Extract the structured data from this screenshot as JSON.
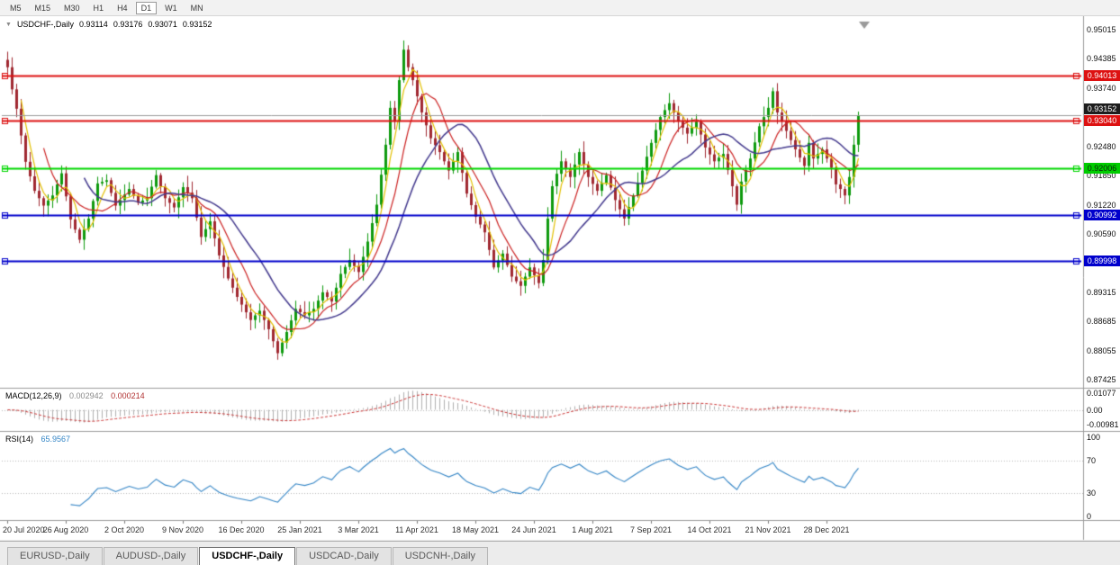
{
  "icons": {
    "dropdown": "▼"
  },
  "toolbar": {
    "timeframes": [
      "M5",
      "M15",
      "M30",
      "H1",
      "H4",
      "D1",
      "W1",
      "MN"
    ],
    "active": "D1"
  },
  "chart": {
    "title_symbol": "USDCHF-,Daily",
    "ohlc": {
      "open": "0.93114",
      "high": "0.93176",
      "low": "0.93071",
      "close": "0.93152"
    }
  },
  "indicators": {
    "macd": {
      "name": "MACD(12,26,9)",
      "value_main": "0.002942",
      "value_signal": "0.000214",
      "axis_labels": [
        {
          "text": "0.01077",
          "value": 0.01077
        },
        {
          "text": "0.00",
          "value": 0
        },
        {
          "text": "-0.00981",
          "value": -0.00981
        }
      ]
    },
    "rsi": {
      "name": "RSI(14)",
      "value": "65.9567",
      "axis_labels": [
        {
          "text": "100",
          "value": 100
        },
        {
          "text": "70",
          "value": 70
        },
        {
          "text": "30",
          "value": 30
        },
        {
          "text": "0",
          "value": 0
        }
      ],
      "levels": [
        70,
        30
      ]
    }
  },
  "price_axis": {
    "labels": [
      {
        "text": "0.95015",
        "price": 0.95015
      },
      {
        "text": "0.94385",
        "price": 0.94385
      },
      {
        "text": "0.93740",
        "price": 0.9374
      },
      {
        "text": "0.92480",
        "price": 0.9248
      },
      {
        "text": "0.91850",
        "price": 0.9185
      },
      {
        "text": "0.91220",
        "price": 0.9122
      },
      {
        "text": "0.90590",
        "price": 0.9059
      },
      {
        "text": "0.89315",
        "price": 0.89315
      },
      {
        "text": "0.88685",
        "price": 0.88685
      },
      {
        "text": "0.88055",
        "price": 0.88055
      },
      {
        "text": "0.87425",
        "price": 0.87425
      }
    ]
  },
  "hlines": [
    {
      "label": "0.94013",
      "price": 0.94013,
      "color": "#dd1111",
      "badge_bg": "#dd1111",
      "badge_fg": "#ffffff",
      "width": 2
    },
    {
      "label": "0.93040",
      "price": 0.9304,
      "color": "#dd1111",
      "badge_bg": "#dd1111",
      "badge_fg": "#ffffff",
      "width": 2
    },
    {
      "label": "0.92006",
      "price": 0.92006,
      "color": "#00d800",
      "badge_bg": "#00cc00",
      "badge_fg": "#072b07",
      "width": 2
    },
    {
      "label": "0.90992",
      "price": 0.90992,
      "color": "#0000cc",
      "badge_bg": "#0000cc",
      "badge_fg": "#ffffff",
      "width": 2
    },
    {
      "label": "0.89998",
      "price": 0.89998,
      "color": "#0000cc",
      "badge_bg": "#0000cc",
      "badge_fg": "#ffffff",
      "width": 2
    }
  ],
  "current_price": {
    "label": "0.93152",
    "price": 0.93152,
    "line_color": "#9a9a9a",
    "badge_bg": "#1d1d1d",
    "badge_fg": "#ffffff"
  },
  "date_axis": [
    "20 Jul 2020",
    "26 Aug 2020",
    "2 Oct 2020",
    "9 Nov 2020",
    "16 Dec 2020",
    "25 Jan 2021",
    "3 Mar 2021",
    "11 Apr 2021",
    "18 May 2021",
    "24 Jun 2021",
    "1 Aug 2021",
    "7 Sep 2021",
    "14 Oct 2021",
    "21 Nov 2021",
    "28 Dec 2021"
  ],
  "tabs": [
    {
      "label": "EURUSD-,Daily",
      "active": false
    },
    {
      "label": "AUDUSD-,Daily",
      "active": false
    },
    {
      "label": "USDCHF-,Daily",
      "active": true
    },
    {
      "label": "USDCAD-,Daily",
      "active": false
    },
    {
      "label": "USDCNH-,Daily",
      "active": false
    }
  ],
  "chart_data": {
    "type": "candlestick",
    "symbol": "USDCHF",
    "period": "Daily",
    "title": "USDCHF-,Daily",
    "ylim": [
      0.8727,
      0.9517
    ],
    "macd_ylim": [
      -0.0125,
      0.0125
    ],
    "rsi_ylim": [
      0,
      100
    ],
    "n_candles": 190,
    "x_axis_dates": [
      "20 Jul 2020",
      "26 Aug 2020",
      "2 Oct 2020",
      "9 Nov 2020",
      "16 Dec 2020",
      "25 Jan 2021",
      "3 Mar 2021",
      "11 Apr 2021",
      "18 May 2021",
      "24 Jun 2021",
      "1 Aug 2021",
      "7 Sep 2021",
      "14 Oct 2021",
      "21 Nov 2021",
      "28 Dec 2021"
    ],
    "candles_per_label_interval": 13,
    "price_path_anchors": [
      [
        0,
        0.942
      ],
      [
        1,
        0.9372
      ],
      [
        2,
        0.933
      ],
      [
        3,
        0.9272
      ],
      [
        4,
        0.9215
      ],
      [
        6,
        0.9152
      ],
      [
        8,
        0.912
      ],
      [
        10,
        0.9142
      ],
      [
        12,
        0.919
      ],
      [
        14,
        0.909
      ],
      [
        16,
        0.9046
      ],
      [
        18,
        0.9092
      ],
      [
        20,
        0.9168
      ],
      [
        22,
        0.9175
      ],
      [
        24,
        0.912
      ],
      [
        27,
        0.9156
      ],
      [
        29,
        0.9126
      ],
      [
        31,
        0.9136
      ],
      [
        33,
        0.9186
      ],
      [
        35,
        0.9136
      ],
      [
        37,
        0.9116
      ],
      [
        39,
        0.916
      ],
      [
        41,
        0.9136
      ],
      [
        43,
        0.9052
      ],
      [
        45,
        0.9086
      ],
      [
        47,
        0.9012
      ],
      [
        49,
        0.8962
      ],
      [
        51,
        0.8922
      ],
      [
        54,
        0.8872
      ],
      [
        56,
        0.8892
      ],
      [
        58,
        0.8852
      ],
      [
        60,
        0.88
      ],
      [
        62,
        0.8846
      ],
      [
        64,
        0.8896
      ],
      [
        66,
        0.8882
      ],
      [
        68,
        0.8896
      ],
      [
        70,
        0.8932
      ],
      [
        72,
        0.8912
      ],
      [
        74,
        0.8972
      ],
      [
        76,
        0.9002
      ],
      [
        78,
        0.8976
      ],
      [
        80,
        0.9042
      ],
      [
        82,
        0.9122
      ],
      [
        84,
        0.9252
      ],
      [
        85,
        0.9332
      ],
      [
        86,
        0.9302
      ],
      [
        87,
        0.9392
      ],
      [
        88,
        0.9458
      ],
      [
        89,
        0.942
      ],
      [
        90,
        0.9392
      ],
      [
        92,
        0.9322
      ],
      [
        94,
        0.9266
      ],
      [
        96,
        0.9236
      ],
      [
        98,
        0.9196
      ],
      [
        100,
        0.9236
      ],
      [
        102,
        0.9146
      ],
      [
        104,
        0.9096
      ],
      [
        106,
        0.9062
      ],
      [
        108,
        0.8986
      ],
      [
        110,
        0.9016
      ],
      [
        112,
        0.8966
      ],
      [
        114,
        0.8946
      ],
      [
        116,
        0.8986
      ],
      [
        118,
        0.8952
      ],
      [
        119,
        0.9002
      ],
      [
        120,
        0.9092
      ],
      [
        121,
        0.9162
      ],
      [
        123,
        0.9216
      ],
      [
        125,
        0.9182
      ],
      [
        127,
        0.9236
      ],
      [
        129,
        0.9182
      ],
      [
        131,
        0.9152
      ],
      [
        133,
        0.9186
      ],
      [
        135,
        0.9132
      ],
      [
        137,
        0.9092
      ],
      [
        139,
        0.9142
      ],
      [
        141,
        0.9196
      ],
      [
        143,
        0.9256
      ],
      [
        145,
        0.9312
      ],
      [
        147,
        0.9342
      ],
      [
        149,
        0.9302
      ],
      [
        151,
        0.9276
      ],
      [
        153,
        0.9302
      ],
      [
        155,
        0.9246
      ],
      [
        157,
        0.9216
      ],
      [
        159,
        0.9232
      ],
      [
        161,
        0.9162
      ],
      [
        162,
        0.9122
      ],
      [
        163,
        0.9172
      ],
      [
        165,
        0.9222
      ],
      [
        167,
        0.9292
      ],
      [
        169,
        0.9332
      ],
      [
        170,
        0.9368
      ],
      [
        171,
        0.9322
      ],
      [
        173,
        0.9282
      ],
      [
        175,
        0.9242
      ],
      [
        177,
        0.9206
      ],
      [
        178,
        0.9256
      ],
      [
        179,
        0.9222
      ],
      [
        181,
        0.9242
      ],
      [
        183,
        0.9202
      ],
      [
        184,
        0.9166
      ],
      [
        185,
        0.9156
      ],
      [
        186,
        0.9142
      ],
      [
        187,
        0.9182
      ],
      [
        188,
        0.9252
      ],
      [
        189,
        0.9315
      ]
    ],
    "indicator_params": {
      "macd": [
        12,
        26,
        9
      ],
      "rsi_period": 14
    },
    "current_ohlc": {
      "open": 0.93114,
      "high": 0.93176,
      "low": 0.93071,
      "close": 0.93152
    },
    "macd_current": {
      "main": 0.002942,
      "signal": 0.000214
    },
    "rsi_current": 65.9567,
    "horizontal_levels": [
      0.94013,
      0.9304,
      0.92006,
      0.90992,
      0.89998
    ],
    "colors": {
      "up": "#0d9a0d",
      "down": "#a02830",
      "ma_fast": "#e3c000",
      "ma_mid": "#cc2222",
      "ma_slow": "#443a8e",
      "macd_hist": "#b0b0b0",
      "macd_signal": "#cc3333",
      "rsi_line": "#3385c6"
    }
  }
}
